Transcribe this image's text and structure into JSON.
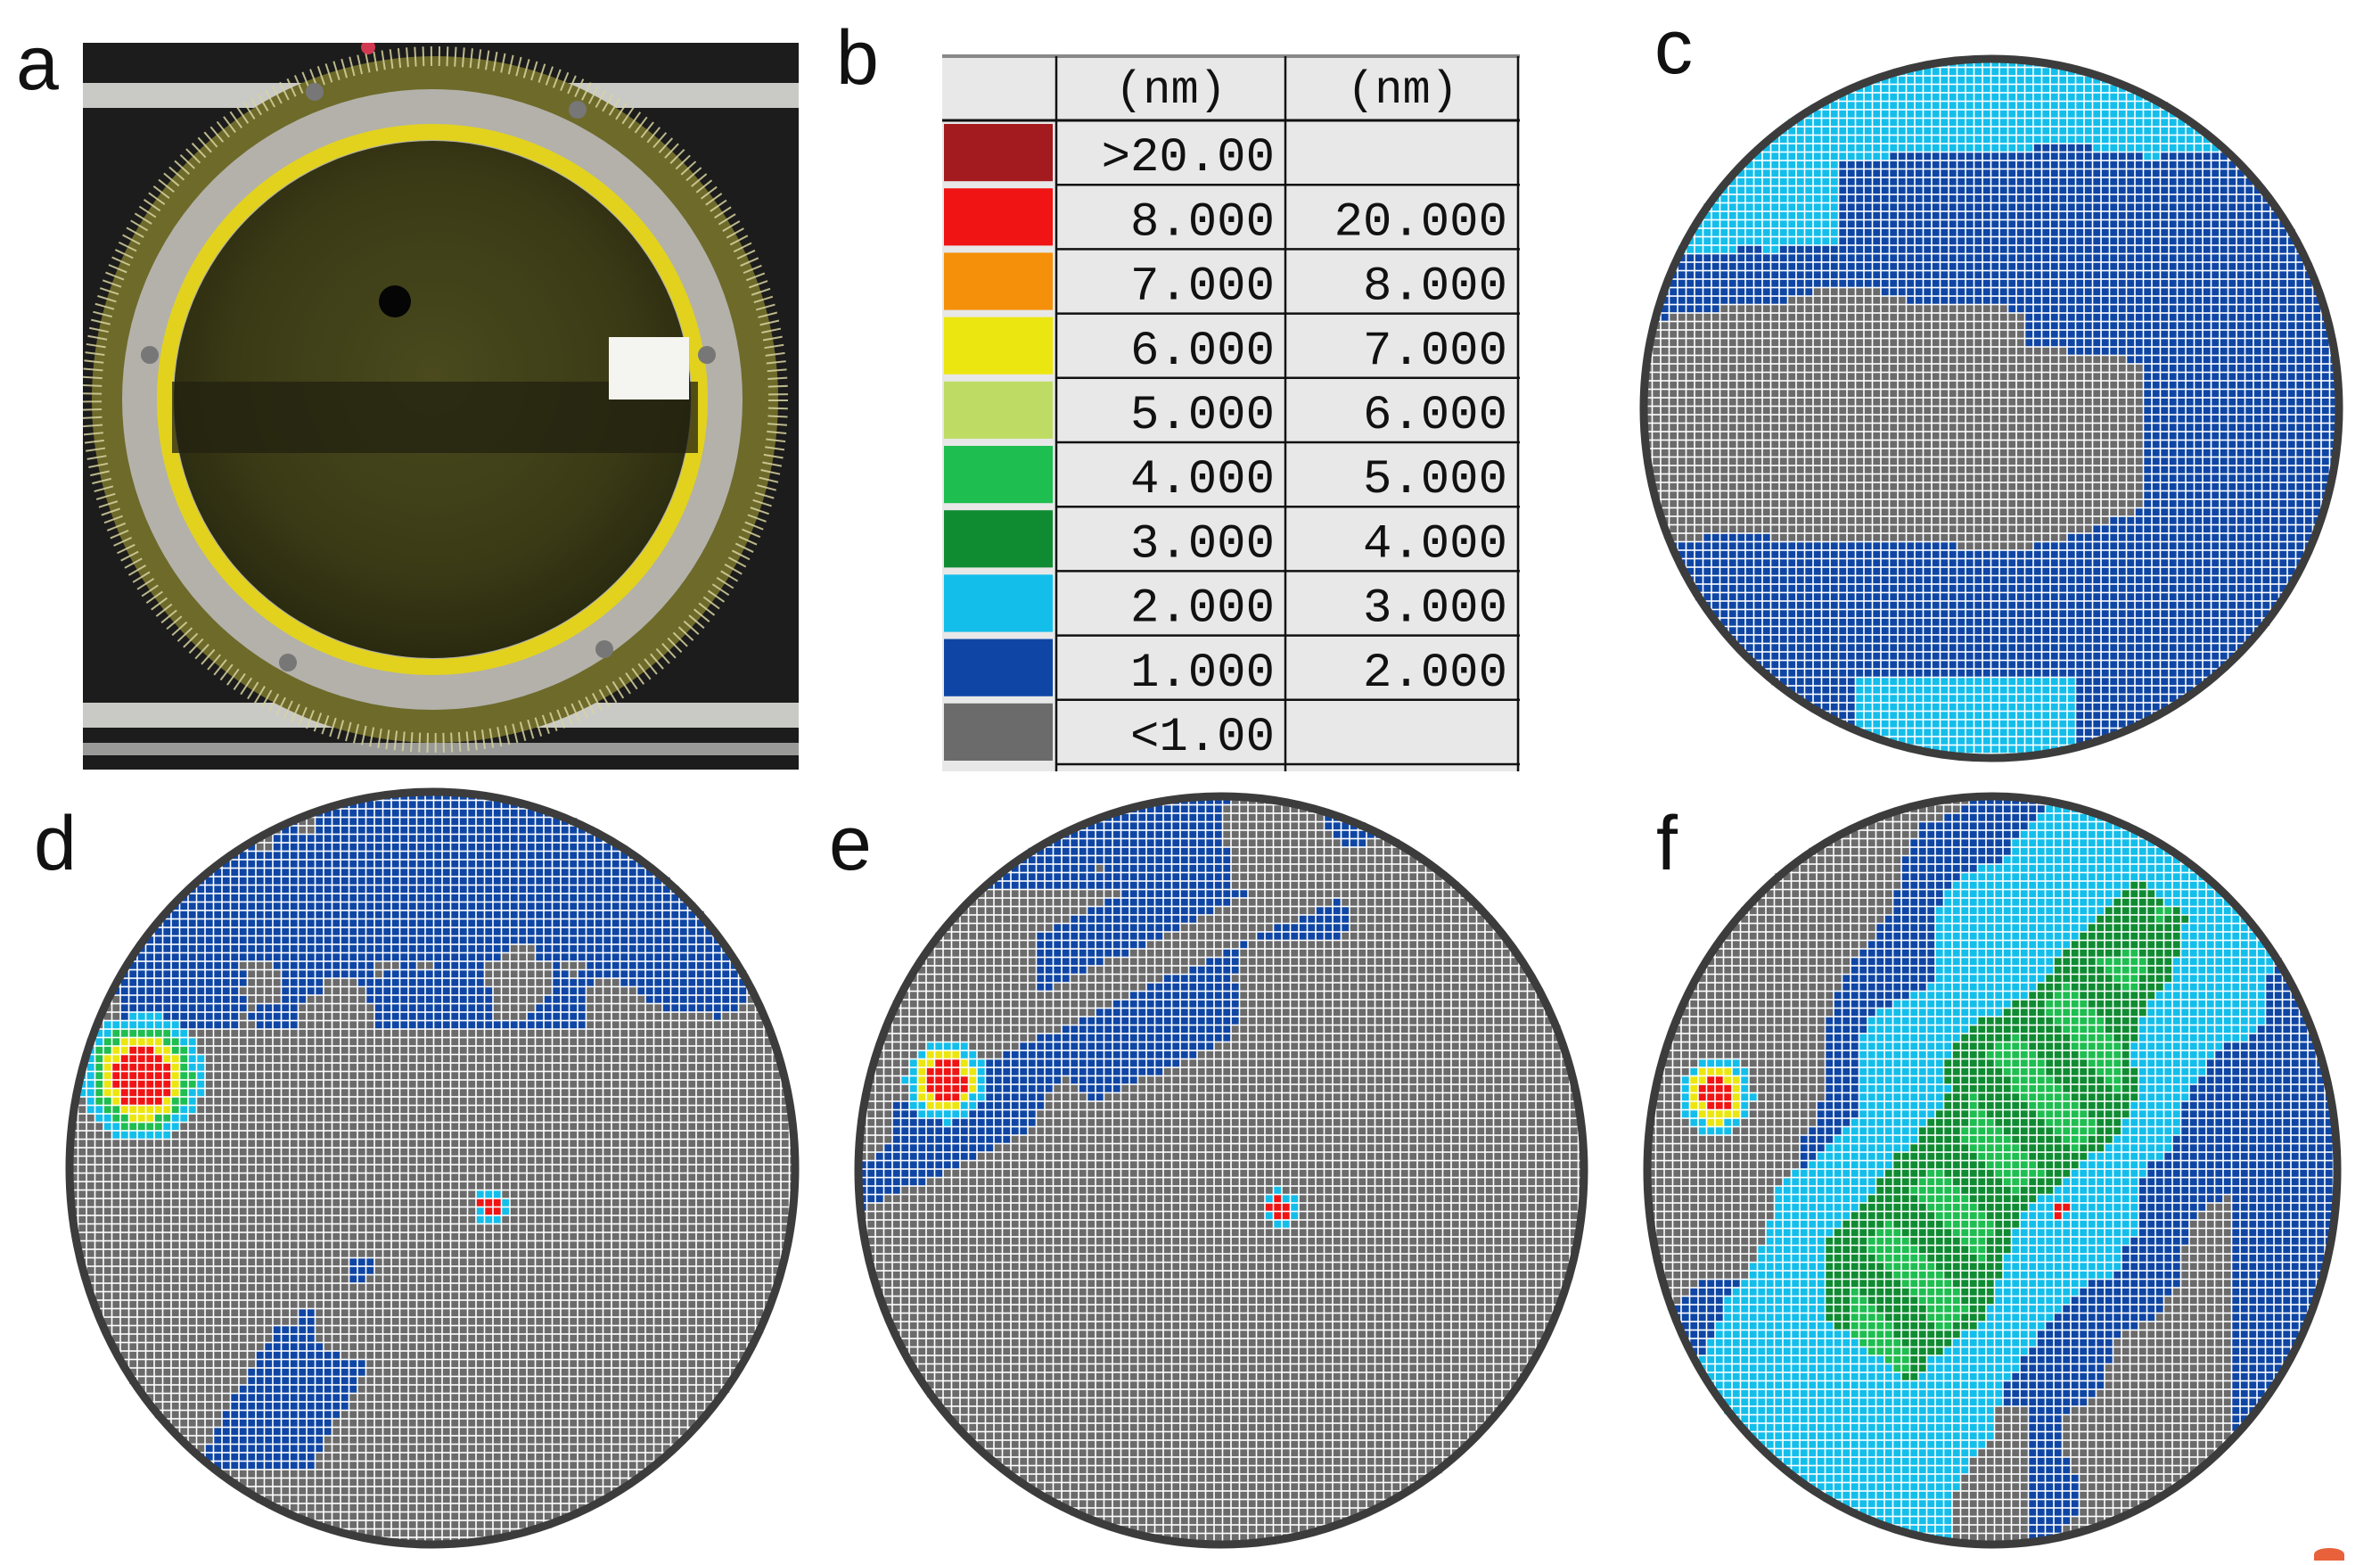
{
  "figure": {
    "panel_labels": {
      "a": "a",
      "b": "b",
      "c": "c",
      "d": "d",
      "e": "e",
      "f": "f"
    }
  },
  "legend": {
    "headers": [
      "(nm)",
      "(nm)"
    ],
    "rows": [
      {
        "color": "#a31a1f",
        "min": ">20.00",
        "max": ""
      },
      {
        "color": "#f01414",
        "min": "8.000",
        "max": "20.000"
      },
      {
        "color": "#f5900a",
        "min": "7.000",
        "max": "8.000"
      },
      {
        "color": "#ece610",
        "min": "6.000",
        "max": "7.000"
      },
      {
        "color": "#bedc64",
        "min": "5.000",
        "max": "6.000"
      },
      {
        "color": "#1ebe50",
        "min": "4.000",
        "max": "5.000"
      },
      {
        "color": "#0f8c32",
        "min": "3.000",
        "max": "4.000"
      },
      {
        "color": "#14beeb",
        "min": "2.000",
        "max": "3.000"
      },
      {
        "color": "#0f46a5",
        "min": "1.000",
        "max": "2.000"
      },
      {
        "color": "#6b6b6b",
        "min": "<1.00",
        "max": ""
      }
    ],
    "table_background": "#e8e8e8"
  },
  "maps": {
    "grid_line_color": "#ffffff",
    "rim_color": "#3c3c3c"
  }
}
